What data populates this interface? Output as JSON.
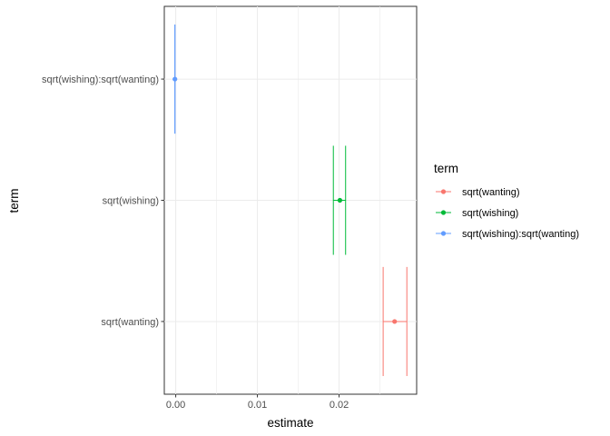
{
  "chart_data": {
    "type": "errorbar",
    "xlabel": "estimate",
    "ylabel": "term",
    "xlim": [
      -0.0014,
      0.0295
    ],
    "x_ticks": [
      {
        "value": 0.0,
        "label": "0.00"
      },
      {
        "value": 0.01,
        "label": "0.01"
      },
      {
        "value": 0.02,
        "label": "0.02"
      }
    ],
    "grid": true,
    "legend": {
      "title": "term",
      "position": "right",
      "entries": [
        {
          "label": "sqrt(wanting)",
          "color": "#F8766D"
        },
        {
          "label": "sqrt(wishing)",
          "color": "#00BA38"
        },
        {
          "label": "sqrt(wishing):sqrt(wanting)",
          "color": "#619CFF"
        }
      ]
    },
    "categories": [
      "sqrt(wanting)",
      "sqrt(wishing)",
      "sqrt(wishing):sqrt(wanting)"
    ],
    "series": [
      {
        "name": "sqrt(wanting)",
        "estimate": 0.0268,
        "conf_low": 0.0254,
        "conf_high": 0.0283,
        "color": "#F8766D"
      },
      {
        "name": "sqrt(wishing)",
        "estimate": 0.0201,
        "conf_low": 0.0193,
        "conf_high": 0.0208,
        "color": "#00BA38"
      },
      {
        "name": "sqrt(wishing):sqrt(wanting)",
        "estimate": -0.0001,
        "conf_low": -0.0001,
        "conf_high": -0.0001,
        "color": "#619CFF"
      }
    ]
  }
}
